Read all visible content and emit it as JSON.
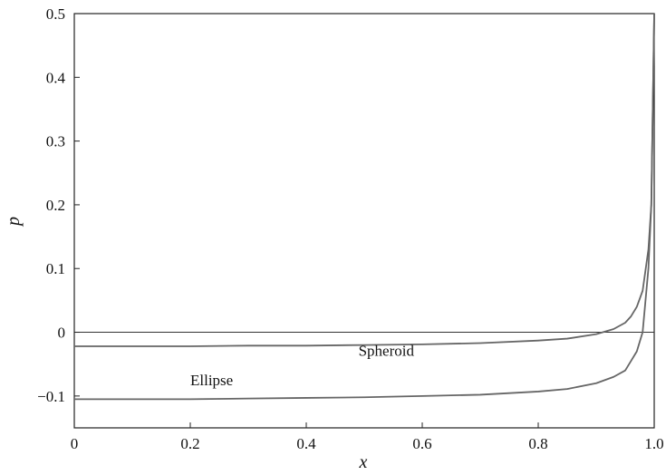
{
  "chart_data": {
    "type": "line",
    "xlabel": "x",
    "ylabel": "p",
    "xlim": [
      0,
      1
    ],
    "ylim": [
      -0.15,
      0.5
    ],
    "x_ticks": [
      {
        "value": 0,
        "label": "0"
      },
      {
        "value": 0.2,
        "label": "0.2"
      },
      {
        "value": 0.4,
        "label": "0.4"
      },
      {
        "value": 0.6,
        "label": "0.6"
      },
      {
        "value": 0.8,
        "label": "0.8"
      },
      {
        "value": 1.0,
        "label": "1.0"
      }
    ],
    "y_ticks": [
      {
        "value": -0.1,
        "label": "−0.1"
      },
      {
        "value": 0,
        "label": "0"
      },
      {
        "value": 0.1,
        "label": "0.1"
      },
      {
        "value": 0.2,
        "label": "0.2"
      },
      {
        "value": 0.3,
        "label": "0.3"
      },
      {
        "value": 0.4,
        "label": "0.4"
      },
      {
        "value": 0.5,
        "label": "0.5"
      }
    ],
    "grid": false,
    "reference_line_y": 0,
    "series": [
      {
        "name": "Spheroid",
        "color": "#666666",
        "x": [
          0,
          0.1,
          0.2,
          0.3,
          0.4,
          0.5,
          0.6,
          0.7,
          0.8,
          0.85,
          0.9,
          0.93,
          0.95,
          0.96,
          0.97,
          0.98,
          0.99,
          0.995,
          1.0
        ],
        "y": [
          -0.022,
          -0.022,
          -0.022,
          -0.021,
          -0.021,
          -0.02,
          -0.019,
          -0.017,
          -0.013,
          -0.01,
          -0.003,
          0.005,
          0.015,
          0.025,
          0.04,
          0.065,
          0.13,
          0.2,
          0.5
        ]
      },
      {
        "name": "Ellipse",
        "color": "#666666",
        "x": [
          0,
          0.1,
          0.2,
          0.3,
          0.4,
          0.5,
          0.6,
          0.7,
          0.8,
          0.85,
          0.9,
          0.93,
          0.95,
          0.96,
          0.97,
          0.98,
          0.99,
          0.995,
          1.0
        ],
        "y": [
          -0.105,
          -0.105,
          -0.105,
          -0.104,
          -0.103,
          -0.102,
          -0.1,
          -0.098,
          -0.093,
          -0.089,
          -0.08,
          -0.07,
          -0.06,
          -0.045,
          -0.03,
          0.0,
          0.1,
          0.2,
          0.5
        ]
      }
    ],
    "annotations": [
      {
        "text": "Spheroid",
        "x": 0.49,
        "y": -0.037
      },
      {
        "text": "Ellipse",
        "x": 0.2,
        "y": -0.083
      }
    ]
  }
}
